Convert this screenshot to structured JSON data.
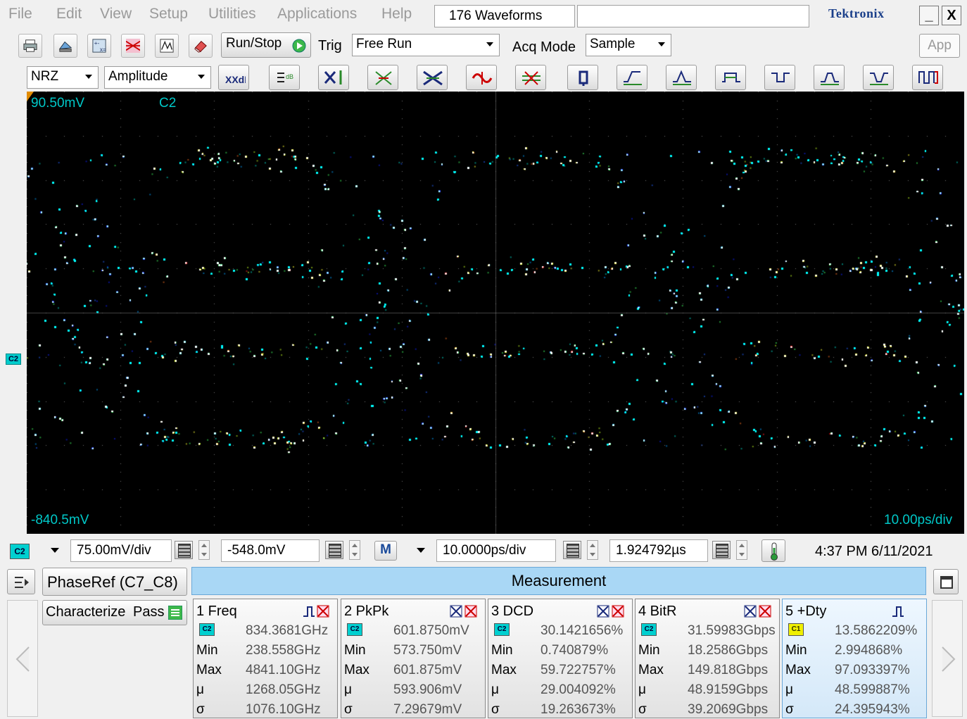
{
  "menu": {
    "items": [
      "File",
      "Edit",
      "View",
      "Setup",
      "Utilities",
      "Applications",
      "Help"
    ],
    "title": "176 Waveforms",
    "brand": "Tektronix",
    "minimize": "_",
    "close": "X"
  },
  "toolbar1": {
    "run_stop_label": "Run/Stop",
    "trig_label": "Trig",
    "trig_value": "Free Run",
    "acq_mode_label": "Acq Mode",
    "acq_mode_value": "Sample",
    "app_label": "App"
  },
  "toolbar2": {
    "signal_type": "NRZ",
    "measurement_category": "Amplitude"
  },
  "scope": {
    "top_label": "90.50mV",
    "channel_label": "C2",
    "bottom_label": "-840.5mV",
    "timebase_label": "10.00ps/div",
    "channel_marker": "C2",
    "colors": {
      "background": "#000000",
      "trace_low": "#1a2aff",
      "trace_mid": "#00d8d0",
      "trace_high": "#ff3030",
      "grid": "#707070"
    }
  },
  "controlbar": {
    "channel_chip": "C2",
    "vertical_scale": "75.00mV/div",
    "vertical_offset": "-548.0mV",
    "math_chip": "M",
    "horizontal_scale": "10.0000ps/div",
    "horizontal_position": "1.924792µs",
    "datetime": "4:37 PM 6/11/2021"
  },
  "panel": {
    "phase_ref": "PhaseRef (C7_C8)",
    "measurement_header": "Measurement",
    "characterize_label": "Characterize",
    "pass_label": "Pass"
  },
  "measurements": [
    {
      "title": "1 Freq",
      "chip": "C2",
      "chip_color": "cyan",
      "value": "834.3681GHz",
      "min": "238.558GHz",
      "max": "4841.10GHz",
      "mean": "1268.05GHz",
      "sigma": "1076.10GHz"
    },
    {
      "title": "2 PkPk",
      "chip": "C2",
      "chip_color": "cyan",
      "value": "601.8750mV",
      "min": "573.750mV",
      "max": "601.875mV",
      "mean": "593.906mV",
      "sigma": "7.29679mV"
    },
    {
      "title": "3 DCD",
      "chip": "C2",
      "chip_color": "cyan",
      "value": "30.1421656%",
      "min": "0.740879%",
      "max": "59.722757%",
      "mean": "29.004092%",
      "sigma": "19.263673%"
    },
    {
      "title": "4 BitR",
      "chip": "C2",
      "chip_color": "cyan",
      "value": "31.59983Gbps",
      "min": "18.2586Gbps",
      "max": "149.818Gbps",
      "mean": "48.9159Gbps",
      "sigma": "39.2069Gbps"
    },
    {
      "title": "5 +Dty",
      "chip": "C1",
      "chip_color": "yellow",
      "value": "13.5862209%",
      "min": "2.994868%",
      "max": "97.093397%",
      "mean": "48.599887%",
      "sigma": "24.395943%"
    }
  ],
  "stat_labels": {
    "min": "Min",
    "max": "Max",
    "mean": "μ",
    "sigma": "σ"
  }
}
